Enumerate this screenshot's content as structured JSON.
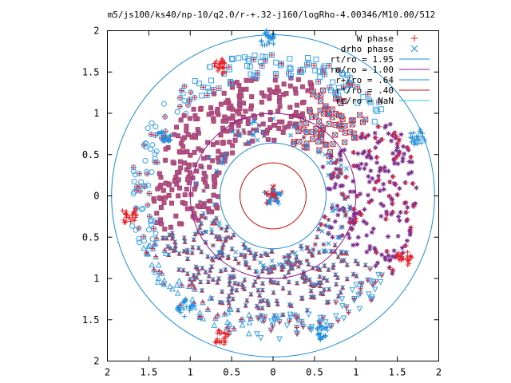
{
  "chart_data": {
    "type": "scatter",
    "title": "m5/js100/ks40/np-10/q2.0/r-+.32-j160/logRho-4.00346/M10.00/512",
    "xlim": [
      -2,
      2
    ],
    "ylim": [
      -2,
      2
    ],
    "x_ticks": [
      -2,
      -1.5,
      -1,
      -0.5,
      0,
      0.5,
      1,
      1.5,
      2
    ],
    "y_ticks": [
      -2,
      -1.5,
      -1,
      -0.5,
      0,
      0.5,
      1,
      1.5,
      2
    ],
    "x_tick_labels": [
      "2",
      "1.5",
      "1",
      "0.5",
      "0",
      "0.5",
      "1",
      "1.5",
      "2"
    ],
    "y_tick_labels": [
      "2",
      "1.5",
      "1",
      "0.5",
      "0",
      "0.5",
      "1",
      "1.5",
      "2"
    ],
    "grid": false,
    "legend_position": "top-right",
    "legend": [
      {
        "label": "W phase",
        "marker": "plus",
        "color": "#e8202a"
      },
      {
        "label": "drho phase",
        "marker": "cross",
        "color": "#1f8ddc"
      },
      {
        "label": "rt/ro = 1.95",
        "line": true,
        "color": "#1f8ddc"
      },
      {
        "label": "ro/ro = 1.00",
        "line": true,
        "color": "#8b1c8b"
      },
      {
        "label": "r+/ro =  .64",
        "line": true,
        "color": "#1f8ddc"
      },
      {
        "label": "r*/ro =  .40",
        "line": true,
        "color": "#cc1111"
      },
      {
        "label": "rc/ro = NaN",
        "line": true,
        "color": "#36c0d8"
      }
    ],
    "circles": [
      {
        "name": "rt/ro = 1.95",
        "r": 1.95,
        "color": "#1f8ddc"
      },
      {
        "name": "ro/ro = 1.00",
        "r": 1.0,
        "color": "#8b1c8b"
      },
      {
        "name": "r+/ro =  .64",
        "r": 0.64,
        "color": "#1f8ddc"
      },
      {
        "name": "r*/ro =  .40",
        "r": 0.4,
        "color": "#cc1111"
      }
    ],
    "series": [
      {
        "name": "W phase",
        "marker": "plus",
        "color": "#e8202a"
      },
      {
        "name": "drho phase",
        "marker": "cross",
        "color": "#1f8ddc"
      }
    ]
  },
  "colors": {
    "red": "#e8202a",
    "blue": "#1f8ddc",
    "purple": "#7b2d8e",
    "lightblue": "#3aa0e8"
  }
}
